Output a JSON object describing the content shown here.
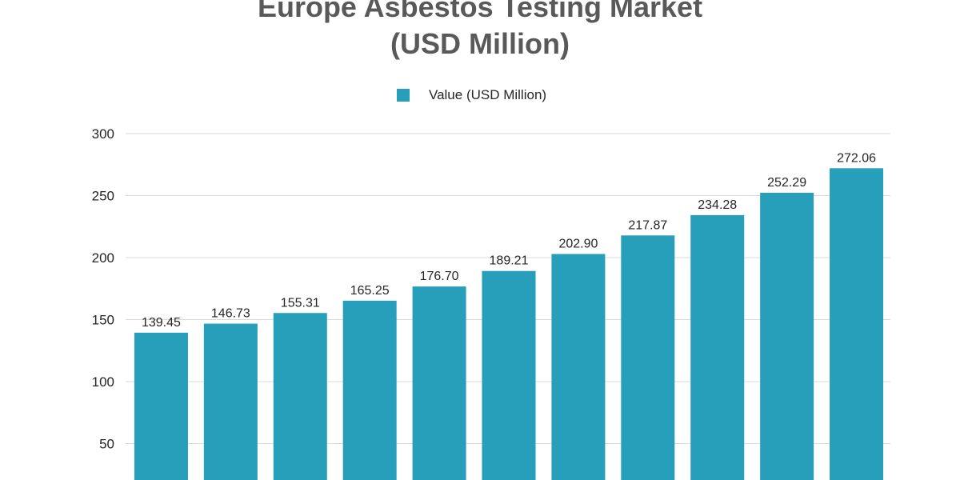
{
  "chart_data": {
    "type": "bar",
    "title": "Europe Asbestos Testing Market",
    "subtitle": "(USD Million)",
    "series": [
      {
        "name": "Value (USD Million)",
        "values": [
          139.45,
          146.73,
          155.31,
          165.25,
          176.7,
          189.21,
          202.9,
          217.87,
          234.28,
          252.29,
          272.06
        ],
        "labels": [
          "139.45",
          "146.73",
          "155.31",
          "165.25",
          "176.70",
          "189.21",
          "202.90",
          "217.87",
          "234.28",
          "252.29",
          "272.06"
        ]
      }
    ],
    "yticks": [
      "50",
      "100",
      "150",
      "200",
      "250",
      "300"
    ],
    "ytick_values": [
      50,
      100,
      150,
      200,
      250,
      300
    ],
    "ylim": [
      0,
      300
    ],
    "grid": true,
    "legend_position": "top-center",
    "bar_color": "#279FBA",
    "grid_color": "#D9D9D9",
    "title_color": "#595959"
  }
}
